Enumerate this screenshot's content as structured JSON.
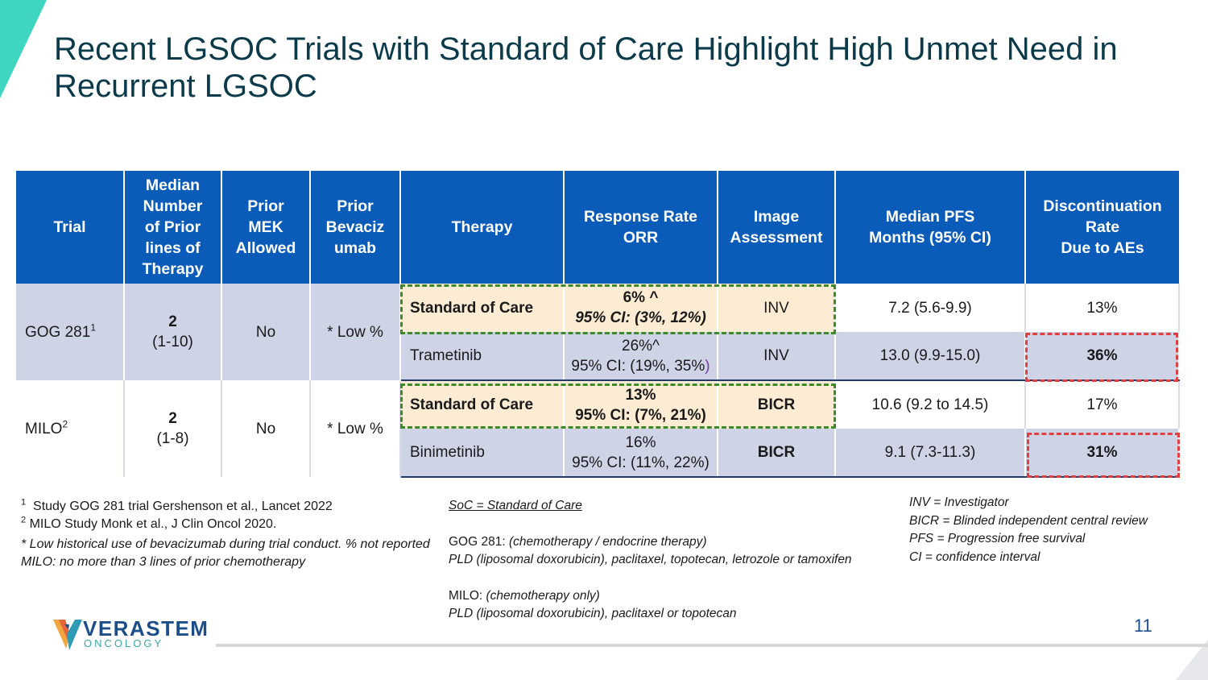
{
  "slide": {
    "title": "Recent LGSOC Trials with Standard of Care Highlight High Unmet Need in Recurrent LGSOC",
    "page_number": "11",
    "accent_color": "#0a5cb8",
    "highlight_green": "#3c8a2a",
    "highlight_red": "#e04040"
  },
  "table": {
    "headers": [
      "Trial",
      "Median Number of Prior lines of Therapy",
      "Prior MEK Allowed",
      "Prior Bevacizumab",
      "Therapy",
      "Response Rate ORR",
      "Image Assessment",
      "Median PFS Months (95% CI)",
      "Discontinuation Rate Due to AEs"
    ],
    "header_lines": {
      "median_lines": [
        "Median",
        "Number",
        "of Prior",
        "lines of",
        "Therapy"
      ],
      "prior_mek": [
        "Prior",
        "MEK",
        "Allowed"
      ],
      "prior_bev": [
        "Prior",
        "Bevaciz",
        "umab"
      ],
      "response": [
        "Response Rate",
        "ORR"
      ],
      "image": [
        "Image",
        "Assessment"
      ],
      "pfs": [
        "Median PFS",
        "Months (95% CI)"
      ],
      "discontinuation": [
        "Discontinuation",
        "Rate",
        "Due to AEs"
      ]
    },
    "trials": [
      {
        "name": "GOG 281",
        "footnote_mark": "1",
        "median_lines": "2",
        "median_range": "(1-10)",
        "prior_mek": "No",
        "prior_bev": "* Low %",
        "arms": [
          {
            "therapy": "Standard of Care",
            "orr": "6% ^",
            "ci": "95% CI: (3%, 12%)",
            "image": "INV",
            "pfs": "7.2 (5.6-9.9)",
            "disc": "13%"
          },
          {
            "therapy": "Trametinib",
            "orr": "26%^",
            "ci": "95% CI: (19%, 35%",
            "ci_close": ")",
            "image": "INV",
            "pfs": "13.0 (9.9-15.0)",
            "disc": "36%"
          }
        ]
      },
      {
        "name": "MILO",
        "footnote_mark": "2",
        "median_lines": "2",
        "median_range": "(1-8)",
        "prior_mek": "No",
        "prior_bev": "* Low %",
        "arms": [
          {
            "therapy": "Standard of Care",
            "orr": "13%",
            "ci": "95% CI: (7%, 21%)",
            "image": "BICR",
            "pfs": "10.6 (9.2 to 14.5)",
            "disc": "17%"
          },
          {
            "therapy": "Binimetinib",
            "orr": "16%",
            "ci": "95% CI: (11%, 22%)",
            "image": "BICR",
            "pfs": "9.1 (7.3-11.3)",
            "disc": "31%"
          }
        ]
      }
    ]
  },
  "footnotes": {
    "fn1_mark": "1",
    "fn1": "Study GOG 281 trial Gershenson et al., Lancet 2022",
    "fn2_mark": "2",
    "fn2": "MILO Study Monk et al., J Clin Oncol 2020.",
    "bev_note": "* Low historical use of bevacizumab during trial conduct. % not reported",
    "milo_note": "MILO: no more than 3 lines of prior chemotherapy"
  },
  "abbreviations": {
    "soc": "SoC = Standard of Care",
    "gog_label": "GOG 281:",
    "gog_type": "(chemotherapy / endocrine therapy)",
    "gog_drugs": "PLD (liposomal doxorubicin), paclitaxel, topotecan, letrozole or tamoxifen",
    "milo_label": "MILO:",
    "milo_type": "(chemotherapy only)",
    "milo_drugs": "PLD (liposomal doxorubicin), paclitaxel or topotecan"
  },
  "legend": {
    "inv": "INV = Investigator",
    "bicr": "BICR = Blinded independent central review",
    "pfs": "PFS =  Progression free survival",
    "ci": "CI = confidence interval"
  },
  "logo": {
    "name": "VERASTEM",
    "sub": "ONCOLOGY"
  }
}
